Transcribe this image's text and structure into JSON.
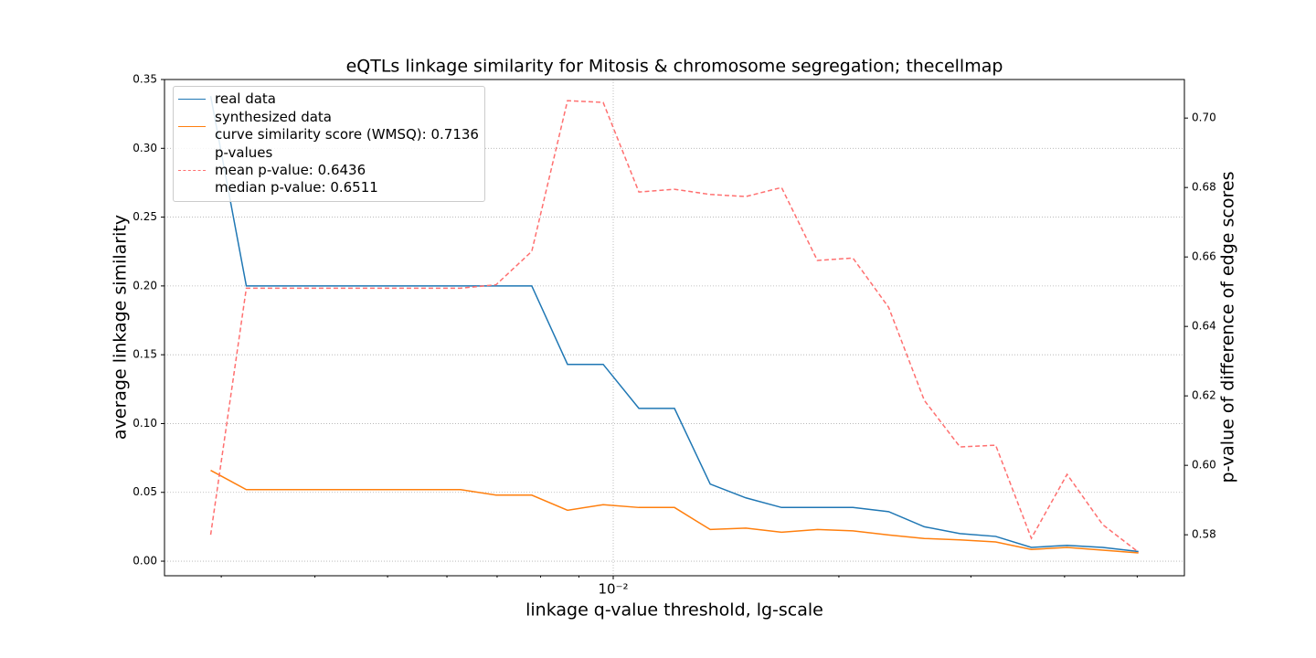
{
  "chart_data": {
    "type": "line",
    "title": "eQTLs linkage similarity for Mitosis & chromosome segregation; thecellmap",
    "x_label": "linkage q-value threshold, lg-scale",
    "y_label": "average linkage similarity",
    "y2_label": "p-value of difference of edge scores",
    "x_log": true,
    "grid": true,
    "legend": "upper left",
    "x": [
      0.002904,
      0.00324,
      0.003616,
      0.004035,
      0.004502,
      0.005023,
      0.005605,
      0.006254,
      0.006978,
      0.007786,
      0.00869,
      0.009696,
      0.01082,
      0.01207,
      0.01347,
      0.01503,
      0.01677,
      0.01872,
      0.02088,
      0.0233,
      0.026,
      0.02901,
      0.03237,
      0.03612,
      0.04031,
      0.04498,
      0.05019
    ],
    "series": [
      {
        "name": "real data",
        "color": "#1f77b4",
        "dash": false,
        "axis": "y",
        "values": [
          0.338,
          0.2,
          0.2,
          0.2,
          0.2,
          0.2,
          0.2,
          0.2,
          0.2,
          0.2,
          0.143,
          0.143,
          0.111,
          0.111,
          0.056,
          0.046,
          0.039,
          0.039,
          0.039,
          0.036,
          0.025,
          0.02,
          0.018,
          0.01,
          0.0115,
          0.01,
          0.007
        ]
      },
      {
        "name": "synthesized data\ncurve similarity score (WMSQ): 0.7136",
        "color": "#ff7f0e",
        "dash": false,
        "axis": "y",
        "values": [
          0.066,
          0.052,
          0.052,
          0.052,
          0.052,
          0.052,
          0.052,
          0.052,
          0.048,
          0.048,
          0.037,
          0.041,
          0.039,
          0.039,
          0.023,
          0.024,
          0.021,
          0.023,
          0.022,
          0.019,
          0.0165,
          0.0155,
          0.014,
          0.0085,
          0.01,
          0.008,
          0.006
        ]
      },
      {
        "name": "p-values\nmean p-value: 0.6436\nmedian p-value: 0.6511",
        "color": "#ff7070",
        "dash": true,
        "axis": "y2",
        "values": [
          0.58,
          0.651,
          0.651,
          0.651,
          0.651,
          0.651,
          0.651,
          0.651,
          0.652,
          0.6616,
          0.705,
          0.7045,
          0.6787,
          0.6795,
          0.678,
          0.6774,
          0.68,
          0.659,
          0.6597,
          0.6455,
          0.6187,
          0.6053,
          0.6058,
          0.579,
          0.5974,
          0.5829,
          0.575
        ]
      }
    ],
    "xlim": [
      0.00252,
      0.0578
    ],
    "xticks": [
      {
        "value": 0.01,
        "label": "10⁻²"
      }
    ],
    "xminorticks": [
      0.003,
      0.004,
      0.005,
      0.006,
      0.007,
      0.008,
      0.009,
      0.02,
      0.03,
      0.04,
      0.05
    ],
    "ylim": [
      -0.0106,
      0.35
    ],
    "yticks": [
      {
        "value": 0,
        "label": "0.00"
      },
      0.05,
      {
        "value": 0.1,
        "label": "0.10"
      },
      0.15,
      {
        "value": 0.2,
        "label": "0.20"
      },
      0.25,
      {
        "value": 0.3,
        "label": "0.30"
      },
      0.35
    ],
    "y2lim": [
      0.5682,
      0.7111
    ],
    "y2ticks": [
      0.58,
      {
        "value": 0.6,
        "label": "0.60"
      },
      0.62,
      0.64,
      0.66,
      0.68,
      {
        "value": 0.7,
        "label": "0.70"
      }
    ]
  }
}
